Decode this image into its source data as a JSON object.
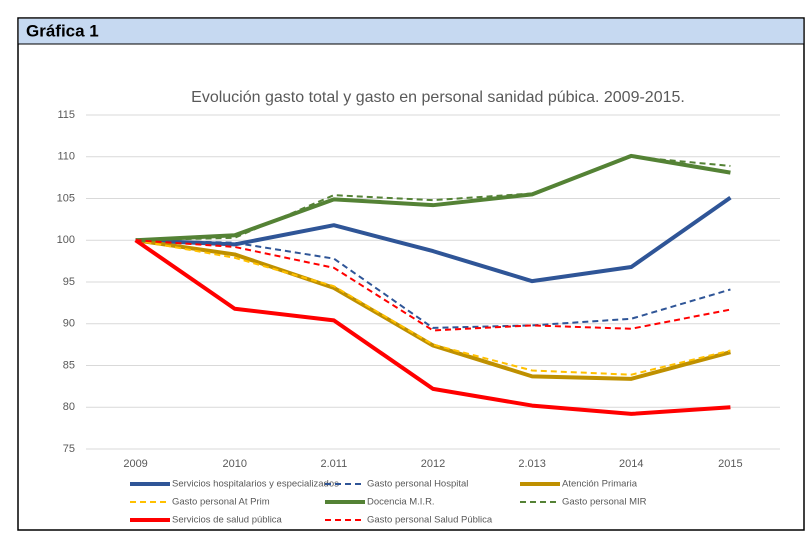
{
  "header": {
    "title": "Gráfica 1"
  },
  "chart_data": {
    "type": "line",
    "title": "Evolución gasto total y gasto en personal sanidad púbica. 2009-2015.",
    "categories": [
      "2009",
      "2010",
      "2.011",
      "2012",
      "2.013",
      "2014",
      "2015"
    ],
    "ylim": [
      75,
      115
    ],
    "yticks": [
      75,
      80,
      85,
      90,
      95,
      100,
      105,
      110,
      115
    ],
    "grid": true,
    "series": [
      {
        "name": "Servicios hospitalarios y especializados",
        "color": "#2f5597",
        "dashed": false,
        "values": [
          100,
          99.5,
          101.8,
          98.7,
          95.1,
          96.8,
          105.1
        ]
      },
      {
        "name": "Gasto personal Hospital",
        "color": "#2f5597",
        "dashed": true,
        "values": [
          100,
          99.7,
          97.8,
          89.5,
          89.8,
          90.6,
          94.1
        ]
      },
      {
        "name": "Atención Primaria",
        "color": "#bf9000",
        "dashed": false,
        "values": [
          100,
          98.3,
          94.3,
          87.4,
          83.7,
          83.4,
          86.6
        ]
      },
      {
        "name": "Gasto personal At Prim",
        "color": "#ffc000",
        "dashed": true,
        "values": [
          100,
          97.9,
          94.5,
          87.5,
          84.4,
          83.9,
          86.8
        ]
      },
      {
        "name": "Docencia M.I.R.",
        "color": "#548235",
        "dashed": false,
        "values": [
          100,
          100.6,
          104.9,
          104.2,
          105.5,
          110.1,
          108.1
        ]
      },
      {
        "name": "Gasto personal MIR",
        "color": "#548235",
        "dashed": true,
        "values": [
          100,
          100.3,
          105.4,
          104.8,
          105.6,
          110.0,
          108.9
        ]
      },
      {
        "name": "Servicios de salud pública",
        "color": "#ff0000",
        "dashed": false,
        "values": [
          100,
          91.8,
          90.4,
          82.2,
          80.2,
          79.2,
          80.0
        ]
      },
      {
        "name": "Gasto personal Salud Pública",
        "color": "#ff0000",
        "dashed": true,
        "values": [
          100,
          99.2,
          96.7,
          89.2,
          89.8,
          89.4,
          91.7
        ]
      }
    ]
  }
}
